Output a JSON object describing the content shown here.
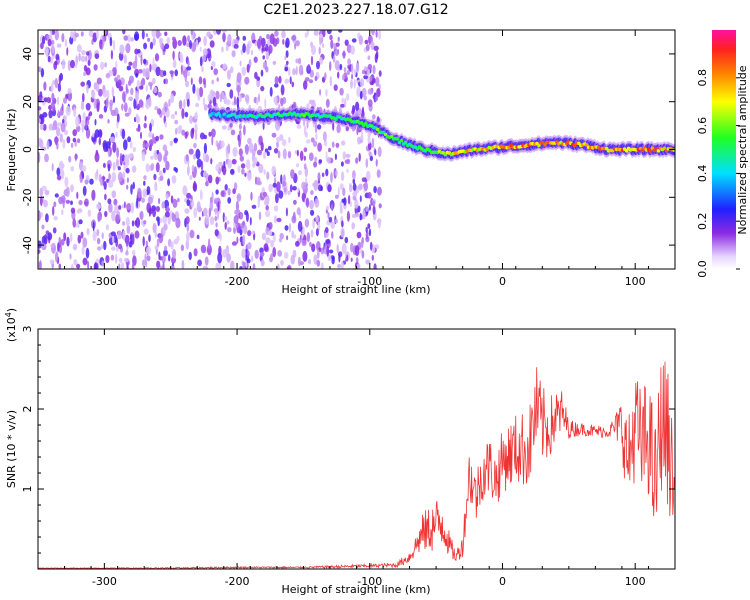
{
  "title": "C2E1.2023.227.18.07.G12",
  "chart_data": [
    {
      "type": "heatmap",
      "xlabel": "Height of straight line (km)",
      "ylabel": "Frequency (Hz)",
      "xlim": [
        -350,
        130
      ],
      "ylim": [
        -50,
        50
      ],
      "xticks": [
        -300,
        -200,
        -100,
        0,
        100
      ],
      "yticks": [
        -40,
        -20,
        0,
        20,
        40
      ],
      "colorbar": {
        "label": "Normalized spectral amplitude",
        "range": [
          0.0,
          1.0
        ],
        "ticks": [
          "0.0",
          "0.2",
          "0.4",
          "0.6",
          "0.8"
        ],
        "colormap": "rainbow (white → purple → blue → cyan → green → yellow → orange → red → magenta)"
      },
      "ridge": {
        "x": [
          -220,
          -200,
          -180,
          -160,
          -140,
          -120,
          -100,
          -90,
          -80,
          -70,
          -60,
          -50,
          -40,
          -20,
          0,
          20,
          40,
          60,
          80,
          100,
          120,
          130
        ],
        "freq": [
          15,
          14,
          14,
          15,
          14,
          13,
          10,
          7,
          4,
          2,
          0,
          -1,
          -2,
          0,
          1,
          2,
          3,
          2,
          0,
          0,
          0,
          0
        ],
        "peak_amplitude": [
          0.45,
          0.5,
          0.55,
          0.6,
          0.6,
          0.55,
          0.6,
          0.65,
          0.6,
          0.55,
          0.6,
          0.7,
          0.8,
          0.85,
          0.9,
          0.95,
          0.9,
          0.95,
          0.9,
          0.95,
          0.9,
          0.85
        ]
      },
      "noise_region_x": [
        -350,
        -100
      ]
    },
    {
      "type": "line",
      "xlabel": "Height of straight line (km)",
      "ylabel": "SNR (10 * v/v)",
      "y_multiplier": "(x10",
      "y_multiplier_exp": "4",
      "y_multiplier_close": ")",
      "xlim": [
        -350,
        130
      ],
      "ylim": [
        0,
        3
      ],
      "xticks": [
        -300,
        -200,
        -100,
        0,
        100
      ],
      "yticks": [
        1,
        2,
        3
      ],
      "color": "#ee3333",
      "series": [
        {
          "x": [
            -350,
            -300,
            -250,
            -200,
            -150,
            -120,
            -100,
            -80,
            -70,
            -65,
            -60,
            -55,
            -50,
            -45,
            -40,
            -35,
            -30,
            -25,
            -20,
            -15,
            -10,
            -5,
            0,
            10,
            20,
            25,
            30,
            35,
            40,
            45,
            50,
            60,
            70,
            80,
            85,
            90,
            95,
            100,
            105,
            110,
            115,
            120,
            125,
            130
          ],
          "y": [
            0.01,
            0.01,
            0.01,
            0.02,
            0.02,
            0.03,
            0.04,
            0.05,
            0.15,
            0.3,
            0.45,
            0.5,
            0.55,
            0.6,
            0.3,
            0.15,
            0.3,
            1.2,
            0.9,
            1.2,
            1.3,
            1.1,
            1.35,
            1.5,
            1.5,
            2.0,
            1.8,
            1.75,
            1.9,
            1.95,
            1.75,
            1.75,
            1.72,
            1.72,
            1.78,
            1.8,
            1.3,
            1.85,
            1.5,
            1.7,
            1.0,
            1.9,
            1.6,
            0.9
          ],
          "noise_amplitude": [
            0.005,
            0.005,
            0.01,
            0.01,
            0.01,
            0.02,
            0.02,
            0.03,
            0.08,
            0.15,
            0.25,
            0.3,
            0.35,
            0.35,
            0.15,
            0.08,
            0.15,
            0.35,
            0.35,
            0.35,
            0.4,
            0.35,
            0.4,
            0.45,
            0.5,
            0.6,
            0.5,
            0.4,
            0.35,
            0.3,
            0.12,
            0.08,
            0.08,
            0.08,
            0.15,
            0.4,
            0.6,
            0.7,
            0.7,
            0.8,
            0.8,
            0.9,
            0.9,
            0.5
          ]
        }
      ]
    }
  ]
}
